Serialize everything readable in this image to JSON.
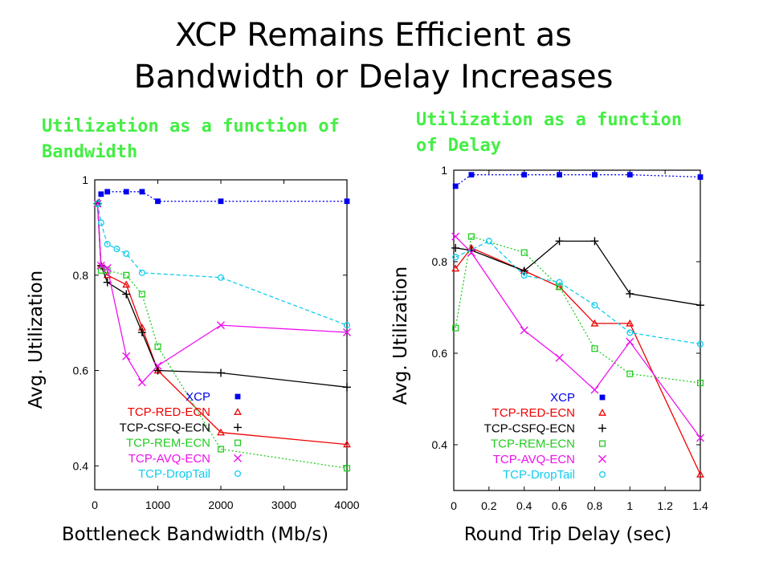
{
  "slide": {
    "title_line1": "XCP Remains Efficient as",
    "title_line2": "Bandwidth or Delay Increases",
    "subtitle_left_line1": "Utilization as a function of",
    "subtitle_left_line2": "Bandwidth",
    "subtitle_right_line1": "Utilization as a function",
    "subtitle_right_line2": "of Delay"
  },
  "colors": {
    "XCP": "#0000ee",
    "TCP-RED-ECN": "#ee0000",
    "TCP-CSFQ-ECN": "#000000",
    "TCP-REM-ECN": "#22cc22",
    "TCP-AVQ-ECN": "#ee11ee",
    "TCP-DropTail": "#11ccee"
  },
  "chart_data": [
    {
      "type": "line",
      "subtitle": "Utilization as a function of Bandwidth",
      "xlabel": "Bottleneck Bandwidth (Mb/s)",
      "ylabel": "Avg. Utilization",
      "xlim": [
        0,
        4000
      ],
      "ylim": [
        0.35,
        1.0
      ],
      "xticks": [
        "0",
        "1000",
        "2000",
        "3000",
        "4000"
      ],
      "xtick_values": [
        0,
        1000,
        2000,
        3000,
        4000
      ],
      "yticks": [
        "1",
        "0.8",
        "0.6",
        "0.4"
      ],
      "ytick_values": [
        1.0,
        0.8,
        0.6,
        0.4
      ],
      "legend_position": "bottom-right",
      "series": [
        {
          "name": "XCP",
          "marker": "square-filled",
          "dash": "dotted",
          "x": [
            45,
            100,
            200,
            500,
            750,
            1000,
            2000,
            4000
          ],
          "y": [
            0.95,
            0.97,
            0.975,
            0.975,
            0.975,
            0.955,
            0.955,
            0.955
          ]
        },
        {
          "name": "TCP-RED-ECN",
          "marker": "triangle",
          "dash": "solid",
          "x": [
            45,
            100,
            200,
            500,
            750,
            1000,
            2000,
            4000
          ],
          "y": [
            0.95,
            0.82,
            0.8,
            0.78,
            0.69,
            0.6,
            0.47,
            0.445
          ]
        },
        {
          "name": "TCP-CSFQ-ECN",
          "marker": "plus",
          "dash": "solid",
          "x": [
            45,
            100,
            200,
            500,
            750,
            1000,
            2000,
            4000
          ],
          "y": [
            0.95,
            0.82,
            0.785,
            0.76,
            0.68,
            0.6,
            0.595,
            0.565
          ]
        },
        {
          "name": "TCP-REM-ECN",
          "marker": "square-open",
          "dash": "dotted",
          "x": [
            45,
            100,
            200,
            500,
            750,
            1000,
            2000,
            4000
          ],
          "y": [
            0.95,
            0.81,
            0.81,
            0.8,
            0.76,
            0.65,
            0.435,
            0.395
          ]
        },
        {
          "name": "TCP-AVQ-ECN",
          "marker": "cross",
          "dash": "solid",
          "x": [
            45,
            100,
            200,
            500,
            750,
            1000,
            2000,
            4000
          ],
          "y": [
            0.95,
            0.82,
            0.815,
            0.63,
            0.575,
            0.61,
            0.695,
            0.68
          ]
        },
        {
          "name": "TCP-DropTail",
          "marker": "circle-open",
          "dash": "dashed",
          "x": [
            45,
            100,
            200,
            350,
            500,
            750,
            2000,
            4000
          ],
          "y": [
            0.95,
            0.91,
            0.865,
            0.855,
            0.845,
            0.805,
            0.795,
            0.695
          ]
        }
      ]
    },
    {
      "type": "line",
      "subtitle": "Utilization as a function of Delay",
      "xlabel": "Round Trip Delay (sec)",
      "ylabel": "Avg. Utilization",
      "xlim": [
        0,
        1.4
      ],
      "ylim": [
        0.3,
        1.0
      ],
      "xticks": [
        "0",
        "0.2",
        "0.4",
        "0.6",
        "0.8",
        "1",
        "1.2",
        "1.4"
      ],
      "xtick_values": [
        0,
        0.2,
        0.4,
        0.6,
        0.8,
        1.0,
        1.2,
        1.4
      ],
      "yticks": [
        "1",
        "0.8",
        "0.6",
        "0.4"
      ],
      "ytick_values": [
        1.0,
        0.8,
        0.6,
        0.4
      ],
      "legend_position": "bottom-right",
      "series": [
        {
          "name": "XCP",
          "marker": "square-filled",
          "dash": "dotted",
          "x": [
            0.01,
            0.1,
            0.4,
            0.6,
            0.8,
            1.0,
            1.4
          ],
          "y": [
            0.965,
            0.99,
            0.99,
            0.99,
            0.99,
            0.99,
            0.985
          ]
        },
        {
          "name": "TCP-RED-ECN",
          "marker": "triangle",
          "dash": "solid",
          "x": [
            0.01,
            0.1,
            0.4,
            0.6,
            0.8,
            1.0,
            1.4
          ],
          "y": [
            0.785,
            0.83,
            0.78,
            0.745,
            0.665,
            0.665,
            0.335
          ]
        },
        {
          "name": "TCP-CSFQ-ECN",
          "marker": "plus",
          "dash": "solid",
          "x": [
            0.01,
            0.1,
            0.4,
            0.6,
            0.8,
            1.0,
            1.4
          ],
          "y": [
            0.83,
            0.825,
            0.78,
            0.845,
            0.845,
            0.73,
            0.705
          ]
        },
        {
          "name": "TCP-REM-ECN",
          "marker": "square-open",
          "dash": "dotted",
          "x": [
            0.01,
            0.1,
            0.4,
            0.6,
            0.8,
            1.0,
            1.4
          ],
          "y": [
            0.655,
            0.855,
            0.82,
            0.745,
            0.61,
            0.555,
            0.535
          ]
        },
        {
          "name": "TCP-AVQ-ECN",
          "marker": "cross",
          "dash": "solid",
          "x": [
            0.01,
            0.1,
            0.4,
            0.6,
            0.8,
            1.0,
            1.4
          ],
          "y": [
            0.855,
            0.82,
            0.65,
            0.59,
            0.52,
            0.625,
            0.415
          ]
        },
        {
          "name": "TCP-DropTail",
          "marker": "circle-open",
          "dash": "dashed",
          "x": [
            0.01,
            0.2,
            0.4,
            0.6,
            0.8,
            1.0,
            1.4
          ],
          "y": [
            0.81,
            0.845,
            0.77,
            0.755,
            0.705,
            0.645,
            0.62
          ]
        }
      ]
    }
  ]
}
